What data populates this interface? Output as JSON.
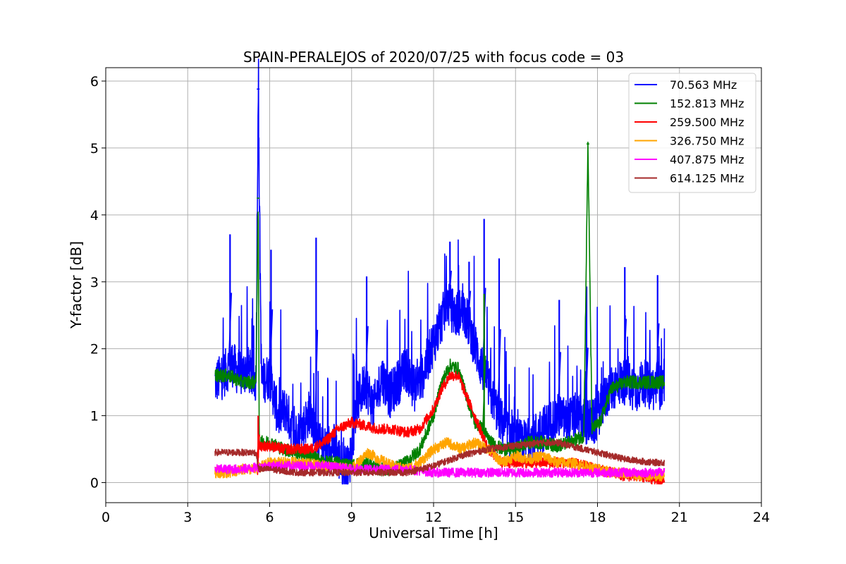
{
  "chart_data": {
    "type": "line",
    "title": "SPAIN-PERALEJOS of 2020/07/25 with focus code = 03",
    "xlabel": "Universal Time [h]",
    "ylabel": "Y-factor [dB]",
    "xlim": [
      0,
      24
    ],
    "ylim": [
      -0.3,
      6.2
    ],
    "xticks": [
      0,
      3,
      6,
      9,
      12,
      15,
      18,
      21,
      24
    ],
    "yticks": [
      0,
      1,
      2,
      3,
      4,
      5,
      6
    ],
    "grid": true,
    "legend_position": "top-right",
    "series": [
      {
        "name": " 70.563 MHz",
        "color": "#0000ff",
        "x": [
          4.0,
          4.3,
          4.6,
          4.9,
          5.2,
          5.5,
          5.58,
          5.7,
          6.0,
          6.3,
          6.6,
          6.9,
          7.2,
          7.5,
          7.7,
          8.0,
          8.3,
          8.6,
          8.9,
          9.2,
          9.5,
          9.8,
          10.1,
          10.4,
          10.7,
          11.0,
          11.3,
          11.6,
          11.9,
          12.2,
          12.5,
          12.8,
          13.1,
          13.4,
          13.7,
          13.9,
          14.2,
          14.5,
          14.8,
          15.1,
          15.4,
          15.7,
          16.0,
          16.3,
          16.6,
          16.9,
          17.2,
          17.6,
          17.9,
          18.2,
          18.5,
          18.8,
          19.1,
          19.4,
          19.7,
          20.0,
          20.2,
          20.45
        ],
        "y": [
          1.5,
          1.6,
          1.8,
          1.6,
          1.7,
          1.5,
          5.88,
          1.5,
          1.6,
          1.0,
          1.1,
          0.7,
          0.8,
          1.1,
          0.6,
          0.5,
          0.6,
          0.3,
          0.2,
          1.2,
          1.5,
          1.1,
          1.6,
          1.3,
          1.5,
          1.7,
          1.4,
          1.6,
          2.0,
          2.3,
          2.7,
          2.5,
          2.6,
          2.2,
          1.8,
          1.6,
          1.2,
          0.9,
          0.7,
          0.6,
          0.6,
          0.7,
          0.8,
          0.9,
          1.0,
          0.9,
          1.0,
          0.9,
          0.9,
          1.2,
          1.4,
          1.5,
          1.5,
          1.4,
          1.5,
          1.4,
          1.5,
          1.3
        ],
        "noise": 0.35,
        "spikes": [
          [
            4.55,
            3.71
          ],
          [
            5.58,
            5.88
          ],
          [
            6.05,
            3.48
          ],
          [
            7.7,
            3.66
          ],
          [
            9.55,
            3.08
          ],
          [
            12.6,
            3.6
          ],
          [
            13.3,
            3.3
          ],
          [
            13.85,
            3.94
          ],
          [
            14.4,
            3.35
          ],
          [
            16.6,
            2.73
          ],
          [
            17.6,
            2.93
          ],
          [
            19.0,
            3.22
          ],
          [
            20.2,
            3.1
          ]
        ]
      },
      {
        "name": "152.813 MHz",
        "color": "#008000",
        "x": [
          4.0,
          4.5,
          5.0,
          5.5,
          5.58,
          5.62,
          6.0,
          6.5,
          7.0,
          7.5,
          8.0,
          8.5,
          9.0,
          9.5,
          10.0,
          10.5,
          11.0,
          11.5,
          12.0,
          12.3,
          12.6,
          12.9,
          13.2,
          13.5,
          13.8,
          14.1,
          14.5,
          15.0,
          15.5,
          16.0,
          16.5,
          17.0,
          17.5,
          17.65,
          17.8,
          18.1,
          18.5,
          19.0,
          19.5,
          20.0,
          20.45
        ],
        "y": [
          1.6,
          1.6,
          1.5,
          1.5,
          4.25,
          0.6,
          0.6,
          0.5,
          0.45,
          0.4,
          0.3,
          0.3,
          0.25,
          0.3,
          0.2,
          0.2,
          0.3,
          0.5,
          1.0,
          1.5,
          1.75,
          1.7,
          1.3,
          0.9,
          0.8,
          0.6,
          0.5,
          0.5,
          0.6,
          0.6,
          0.55,
          0.6,
          0.7,
          5.06,
          0.8,
          0.9,
          1.4,
          1.5,
          1.5,
          1.5,
          1.5
        ],
        "noise": 0.1,
        "spikes": [
          [
            5.58,
            4.25
          ],
          [
            13.85,
            2.82
          ],
          [
            17.65,
            5.06
          ]
        ]
      },
      {
        "name": "259.500 MHz",
        "color": "#ff0000",
        "x": [
          5.55,
          5.6,
          6.0,
          6.5,
          7.0,
          7.5,
          8.0,
          8.5,
          9.0,
          9.5,
          10.0,
          10.5,
          11.0,
          11.5,
          12.0,
          12.3,
          12.6,
          12.9,
          13.2,
          13.5,
          13.8,
          14.0,
          14.5,
          15.0,
          15.5,
          16.0,
          16.5,
          17.0,
          17.5,
          18.0,
          18.5,
          19.0,
          19.5,
          20.0,
          20.45
        ],
        "y": [
          0.1,
          0.55,
          0.55,
          0.5,
          0.5,
          0.5,
          0.6,
          0.8,
          0.9,
          0.85,
          0.8,
          0.8,
          0.75,
          0.8,
          1.1,
          1.4,
          1.6,
          1.6,
          1.3,
          1.0,
          0.7,
          0.5,
          0.3,
          0.3,
          0.3,
          0.3,
          0.3,
          0.3,
          0.25,
          0.2,
          0.15,
          0.1,
          0.1,
          0.05,
          0.05
        ],
        "noise": 0.08,
        "spikes": [
          [
            5.58,
            1.0
          ]
        ]
      },
      {
        "name": "326.750 MHz",
        "color": "#ffa500",
        "x": [
          4.0,
          4.5,
          5.0,
          5.5,
          6.0,
          7.0,
          8.0,
          9.0,
          9.6,
          10.0,
          10.5,
          11.0,
          11.5,
          12.0,
          12.5,
          13.0,
          13.5,
          14.0,
          14.5,
          15.0,
          15.5,
          16.0,
          16.5,
          17.0,
          17.5,
          18.0,
          18.5,
          19.0,
          19.5,
          20.0,
          20.45
        ],
        "y": [
          0.15,
          0.15,
          0.2,
          0.2,
          0.3,
          0.3,
          0.25,
          0.2,
          0.45,
          0.35,
          0.25,
          0.2,
          0.3,
          0.5,
          0.6,
          0.5,
          0.6,
          0.5,
          0.3,
          0.4,
          0.35,
          0.4,
          0.3,
          0.3,
          0.25,
          0.2,
          0.15,
          0.15,
          0.1,
          0.1,
          0.1
        ],
        "noise": 0.08,
        "spikes": []
      },
      {
        "name": "407.875 MHz",
        "color": "#ff00ff",
        "x": [
          4.0,
          5.0,
          6.0,
          7.0,
          8.0,
          9.0,
          10.0,
          11.0,
          12.0,
          13.0,
          14.0,
          15.0,
          16.0,
          17.0,
          18.0,
          19.0,
          20.0,
          20.45
        ],
        "y": [
          0.2,
          0.2,
          0.25,
          0.25,
          0.25,
          0.2,
          0.2,
          0.2,
          0.15,
          0.15,
          0.15,
          0.15,
          0.15,
          0.15,
          0.15,
          0.15,
          0.15,
          0.15
        ],
        "noise": 0.07,
        "spikes": []
      },
      {
        "name": "614.125 MHz",
        "color": "#a52a2a",
        "x": [
          4.0,
          5.0,
          5.5,
          5.6,
          6.0,
          7.0,
          8.0,
          9.0,
          10.0,
          11.0,
          12.0,
          13.0,
          14.0,
          15.0,
          16.0,
          16.5,
          17.0,
          18.0,
          19.0,
          20.0,
          20.45
        ],
        "y": [
          0.45,
          0.45,
          0.45,
          0.2,
          0.2,
          0.15,
          0.15,
          0.15,
          0.15,
          0.15,
          0.25,
          0.4,
          0.5,
          0.55,
          0.6,
          0.6,
          0.55,
          0.45,
          0.35,
          0.3,
          0.3
        ],
        "noise": 0.05,
        "spikes": []
      }
    ]
  }
}
